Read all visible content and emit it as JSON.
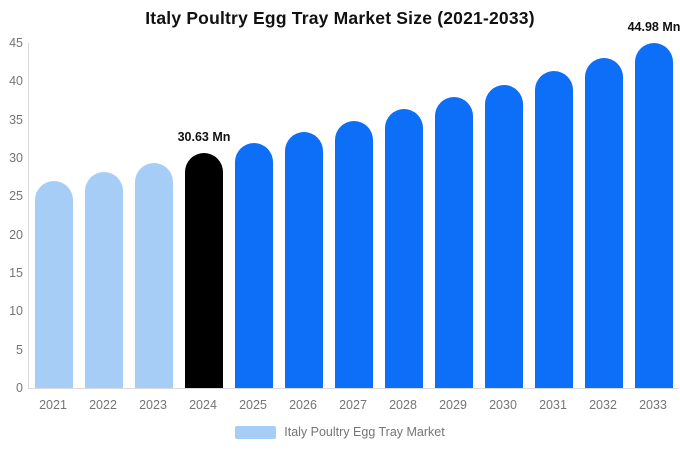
{
  "title": "Italy Poultry Egg Tray Market Size (2021-2033)",
  "legend": {
    "label": "Italy Poultry Egg Tray Market",
    "swatch_color": "#A6CDF5"
  },
  "colors": {
    "historical_bar": "#A6CDF5",
    "base_year_bar": "#000000",
    "forecast_bar": "#0D6EF7",
    "axis_line": "#D9D9D9",
    "tick_text": "#757575",
    "title_text": "#111111",
    "annotation_text": "#111111"
  },
  "chart_data": {
    "type": "bar",
    "title": "Italy Poultry Egg Tray Market Size (2021-2033)",
    "xlabel": "",
    "ylabel": "",
    "categories": [
      "2021",
      "2022",
      "2023",
      "2024",
      "2025",
      "2026",
      "2027",
      "2028",
      "2029",
      "2030",
      "2031",
      "2032",
      "2033"
    ],
    "values": [
      26.95,
      28.13,
      29.35,
      30.63,
      31.97,
      33.36,
      34.82,
      36.34,
      37.92,
      39.58,
      41.3,
      43.1,
      44.98
    ],
    "bar_styles": [
      "historical",
      "historical",
      "historical",
      "base_year",
      "forecast",
      "forecast",
      "forecast",
      "forecast",
      "forecast",
      "forecast",
      "forecast",
      "forecast",
      "forecast"
    ],
    "annotations": [
      {
        "category": "2024",
        "text": "30.63 Mn"
      },
      {
        "category": "2033",
        "text": "44.98 Mn"
      }
    ],
    "ylim": [
      0,
      45
    ],
    "yticks": [
      0,
      5,
      10,
      15,
      20,
      25,
      30,
      35,
      40,
      45
    ],
    "grid": false,
    "legend_position": "bottom",
    "legend_entries": [
      "Italy Poultry Egg Tray Market"
    ],
    "unit": "Mn"
  }
}
